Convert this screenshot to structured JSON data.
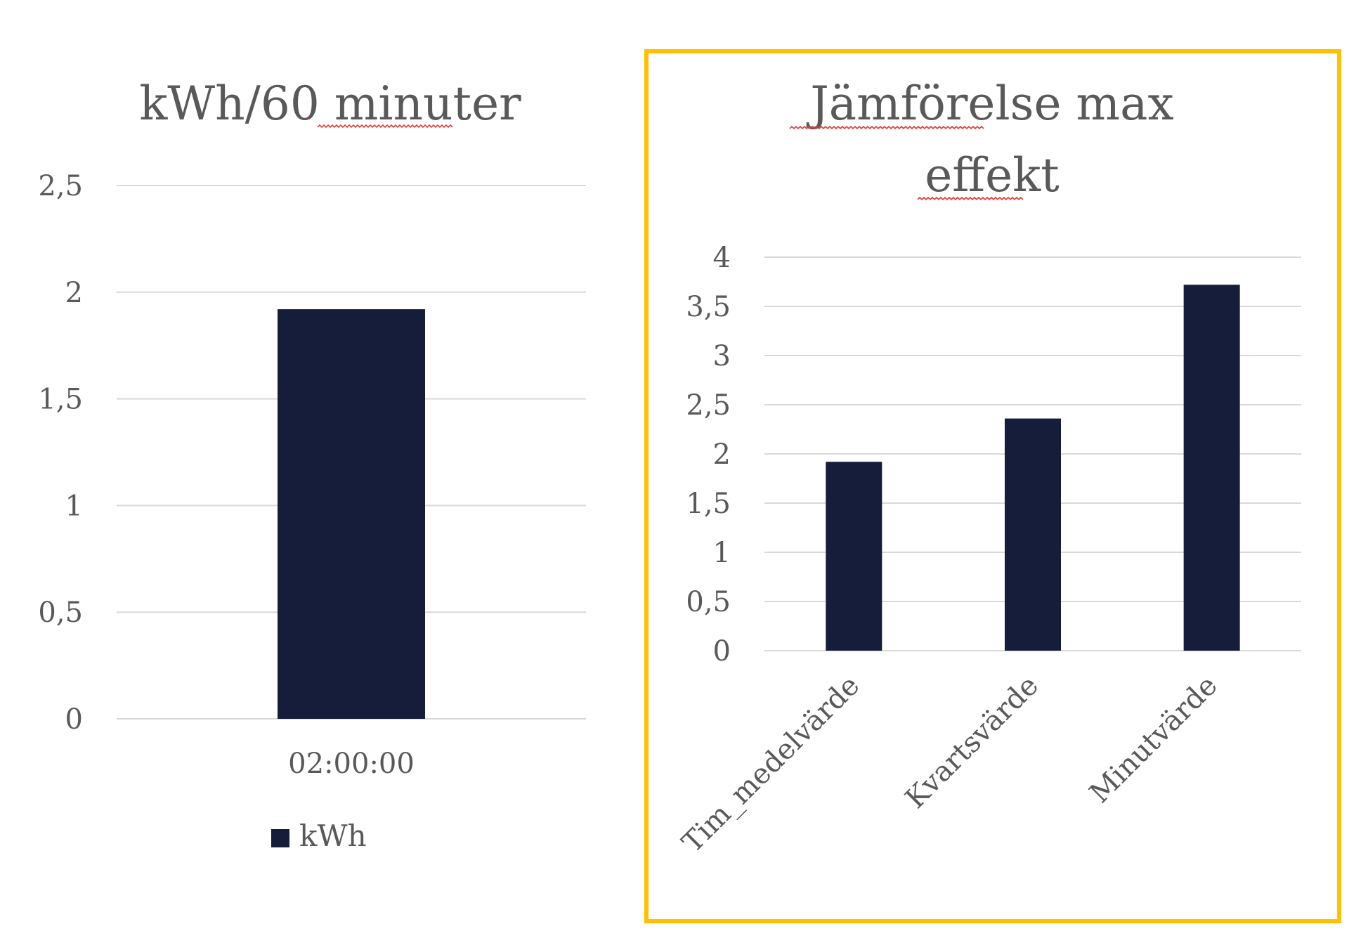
{
  "colors": {
    "bar": "#161d3b",
    "grid": "#d9d9d9",
    "text": "#595959",
    "highlight_border": "#ffc000",
    "spellcheck_underline": "#e03c3c"
  },
  "chart_data": [
    {
      "type": "bar",
      "title": "kWh/60 minuter",
      "categories": [
        "02:00:00"
      ],
      "series": [
        {
          "name": "kWh",
          "values": [
            1.92
          ]
        }
      ],
      "ylim": [
        0,
        2.5
      ],
      "yticks": [
        "0",
        "0,5",
        "1",
        "1,5",
        "2",
        "2,5"
      ],
      "grid": true,
      "legend": "bottom",
      "xlabel": "",
      "ylabel": ""
    },
    {
      "type": "bar",
      "title": "Jämförelse max effekt",
      "title_lines": [
        "Jämförelse max",
        "effekt"
      ],
      "categories": [
        "Tim_medelvärde",
        "Kvartsvärde",
        "Minutvärde"
      ],
      "series": [
        {
          "values": [
            1.92,
            2.36,
            3.72
          ]
        }
      ],
      "ylim": [
        0,
        4
      ],
      "yticks": [
        "0",
        "0,5",
        "1",
        "1,5",
        "2",
        "2,5",
        "3",
        "3,5",
        "4"
      ],
      "grid": true,
      "legend": "none",
      "highlighted": true,
      "xlabel": "",
      "ylabel": ""
    }
  ]
}
